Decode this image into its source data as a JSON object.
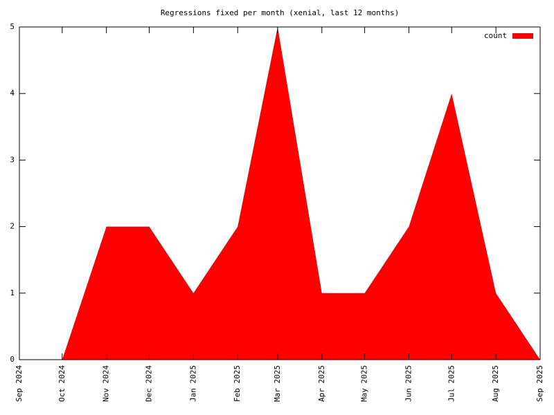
{
  "chart_data": {
    "type": "area",
    "title": "Regressions fixed per month (xenial, last 12 months)",
    "x": [
      "Oct 2024",
      "Nov 2024",
      "Dec 2024",
      "Jan 2025",
      "Feb 2025",
      "Mar 2025",
      "Apr 2025",
      "May 2025",
      "Jun 2025",
      "Jul 2025",
      "Aug 2025",
      "Sep 2025"
    ],
    "series": [
      {
        "name": "count",
        "color": "#ff0000",
        "values": [
          0,
          2,
          2,
          1,
          2,
          5,
          1,
          1,
          2,
          4,
          1,
          0
        ]
      }
    ],
    "xlim": [
      "Sep 2024",
      "Sep 2025"
    ],
    "xticks": [
      "Sep 2024",
      "Oct 2024",
      "Nov 2024",
      "Dec 2024",
      "Jan 2025",
      "Feb 2025",
      "Mar 2025",
      "Apr 2025",
      "May 2025",
      "Jun 2025",
      "Jul 2025",
      "Aug 2025",
      "Sep 2025"
    ],
    "ylim": [
      0,
      5
    ],
    "yticks": [
      0,
      1,
      2,
      3,
      4,
      5
    ],
    "legend": "top-right"
  }
}
